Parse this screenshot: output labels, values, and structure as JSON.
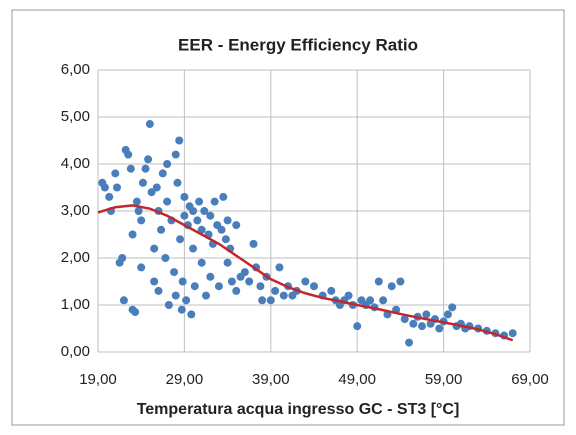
{
  "chart_data": {
    "type": "scatter",
    "title": "EER - Energy Efficiency Ratio",
    "x_label": "Temperatura acqua ingresso GC - ST3 [°C]",
    "color": "#4a7ebb",
    "x": [
      19.5,
      19.8,
      20.3,
      20.5,
      21,
      21.2,
      21.5,
      21.8,
      22,
      22.2,
      22.5,
      22.8,
      23,
      23,
      23.3,
      23.5,
      23.7,
      24,
      24,
      24.2,
      24.5,
      24.8,
      25,
      25.2,
      25.5,
      25.5,
      25.8,
      26,
      26,
      26.3,
      26.5,
      26.8,
      27,
      27,
      27.2,
      27.5,
      27.8,
      28,
      28,
      28.2,
      28.4,
      28.5,
      28.7,
      28.8,
      29,
      29,
      29.2,
      29.4,
      29.6,
      29.8,
      30,
      30,
      30.2,
      30.5,
      30.7,
      31,
      31,
      31.3,
      31.5,
      31.8,
      32,
      32,
      32.3,
      32.5,
      32.8,
      33,
      33.3,
      33.5,
      33.8,
      34,
      34,
      34.3,
      34.5,
      35,
      35,
      35.5,
      36,
      36.5,
      37,
      37.3,
      37.8,
      38,
      38.5,
      39,
      39.5,
      40,
      40.5,
      41,
      41.5,
      42,
      43,
      44,
      45,
      46,
      46.5,
      47,
      47.5,
      48,
      48.5,
      49,
      49.5,
      50,
      50.5,
      51,
      51.5,
      52,
      52.5,
      53,
      53.5,
      54,
      54.5,
      55,
      55.5,
      56,
      56.5,
      57,
      57.5,
      58,
      58.5,
      59,
      59.5,
      60,
      60.5,
      61,
      61.5,
      62,
      63,
      64,
      65,
      66,
      67
    ],
    "values": [
      3.6,
      3.5,
      3.3,
      3.0,
      3.8,
      3.5,
      1.9,
      2.0,
      1.1,
      4.3,
      4.2,
      3.9,
      2.5,
      0.9,
      0.85,
      3.2,
      3.0,
      2.8,
      1.8,
      3.6,
      3.9,
      4.1,
      4.85,
      3.4,
      2.2,
      1.5,
      3.5,
      3.0,
      1.3,
      2.6,
      3.8,
      2.0,
      3.2,
      4.0,
      1.0,
      2.8,
      1.7,
      4.2,
      1.2,
      3.6,
      4.5,
      2.4,
      0.9,
      1.5,
      3.3,
      2.9,
      1.1,
      2.7,
      3.1,
      0.8,
      3.0,
      2.2,
      1.4,
      2.8,
      3.2,
      2.6,
      1.9,
      3.0,
      1.2,
      2.5,
      2.9,
      1.6,
      2.3,
      3.2,
      2.7,
      1.4,
      2.6,
      3.3,
      2.4,
      2.8,
      1.9,
      2.2,
      1.5,
      2.7,
      1.3,
      1.6,
      1.7,
      1.5,
      2.3,
      1.8,
      1.4,
      1.1,
      1.6,
      1.1,
      1.3,
      1.8,
      1.2,
      1.4,
      1.2,
      1.3,
      1.5,
      1.4,
      1.2,
      1.3,
      1.1,
      1.0,
      1.1,
      1.2,
      1.0,
      0.55,
      1.1,
      1.0,
      1.1,
      0.95,
      1.5,
      1.1,
      0.8,
      1.4,
      0.9,
      1.5,
      0.7,
      0.2,
      0.6,
      0.75,
      0.55,
      0.8,
      0.6,
      0.7,
      0.5,
      0.65,
      0.8,
      0.95,
      0.55,
      0.6,
      0.5,
      0.55,
      0.5,
      0.45,
      0.4,
      0.35,
      0.4
    ],
    "trendline": {
      "color": "#c0282d",
      "x": [
        19,
        21,
        23,
        25,
        27,
        29,
        31,
        33,
        35,
        37,
        39,
        41,
        43,
        45,
        47,
        49,
        51,
        53,
        55,
        57,
        59,
        61,
        63,
        65,
        67
      ],
      "y": [
        2.97,
        3.08,
        3.12,
        3.05,
        2.9,
        2.7,
        2.5,
        2.3,
        2.05,
        1.8,
        1.55,
        1.38,
        1.25,
        1.15,
        1.08,
        1.0,
        0.93,
        0.85,
        0.77,
        0.7,
        0.63,
        0.56,
        0.48,
        0.38,
        0.25
      ]
    },
    "xlim": [
      19,
      69
    ],
    "xticks": [
      {
        "value": 19,
        "label": "19,00"
      },
      {
        "value": 29,
        "label": "29,00"
      },
      {
        "value": 39,
        "label": "39,00"
      },
      {
        "value": 49,
        "label": "49,00"
      },
      {
        "value": 59,
        "label": "59,00"
      },
      {
        "value": 69,
        "label": "69,00"
      }
    ],
    "ylim": [
      0,
      6
    ],
    "yticks": [
      {
        "value": 0,
        "label": "0,00"
      },
      {
        "value": 1,
        "label": "1,00"
      },
      {
        "value": 2,
        "label": "2,00"
      },
      {
        "value": 3,
        "label": "3,00"
      },
      {
        "value": 4,
        "label": "4,00"
      },
      {
        "value": 5,
        "label": "5,00"
      },
      {
        "value": 6,
        "label": "6,00"
      }
    ],
    "grid": true
  }
}
